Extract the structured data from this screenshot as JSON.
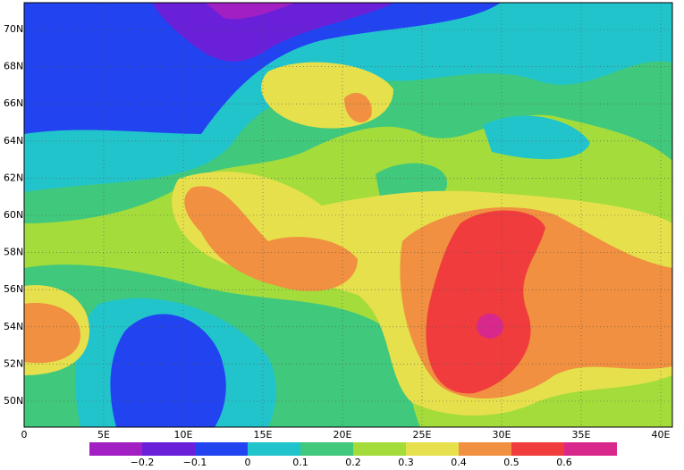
{
  "map": {
    "lat_ticks": [
      {
        "value": 70,
        "label": "70N"
      },
      {
        "value": 68,
        "label": "68N"
      },
      {
        "value": 66,
        "label": "66N"
      },
      {
        "value": 64,
        "label": "64N"
      },
      {
        "value": 62,
        "label": "62N"
      },
      {
        "value": 60,
        "label": "60N"
      },
      {
        "value": 58,
        "label": "58N"
      },
      {
        "value": 56,
        "label": "56N"
      },
      {
        "value": 54,
        "label": "54N"
      },
      {
        "value": 52,
        "label": "52N"
      },
      {
        "value": 50,
        "label": "50N"
      }
    ],
    "lon_ticks": [
      0,
      {
        "value": 5,
        "label": "5E"
      },
      {
        "value": 10,
        "label": "10E"
      },
      {
        "value": 15,
        "label": "15E"
      },
      {
        "value": 20,
        "label": "20E"
      },
      {
        "value": 25,
        "label": "25E"
      },
      {
        "value": 30,
        "label": "30E"
      },
      {
        "value": 35,
        "label": "35E"
      },
      {
        "value": 40,
        "label": "40E"
      }
    ],
    "colorbar": {
      "colors": [
        "#a21fc4",
        "#6a20d8",
        "#2244f0",
        "#22c4cc",
        "#40c87c",
        "#a4dc3c",
        "#e6e04c",
        "#f09040",
        "#f03c3c",
        "#d8288c"
      ],
      "labels": [
        {
          "value": -0.2,
          "label": "−0.2"
        },
        {
          "value": -0.1,
          "label": "−0.1"
        },
        0,
        0.1,
        0.2,
        0.3,
        0.4,
        0.5,
        0.6
      ]
    }
  }
}
